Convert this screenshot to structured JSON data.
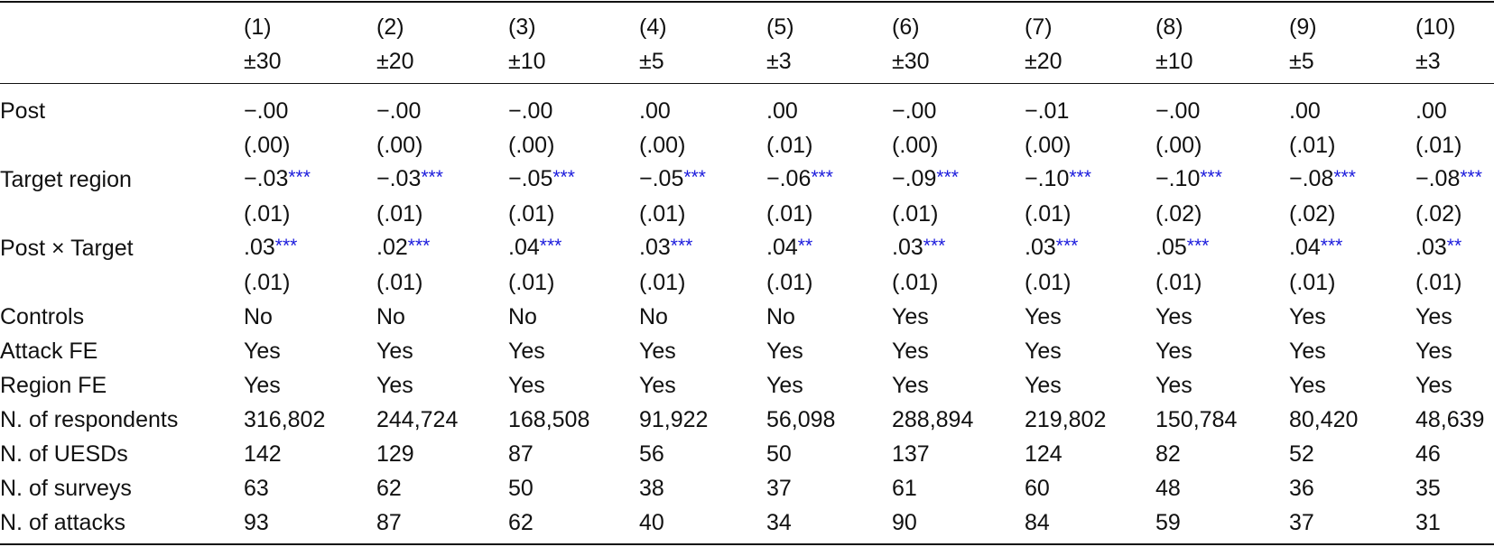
{
  "table": {
    "header": {
      "numbers": [
        "(1)",
        "(2)",
        "(3)",
        "(4)",
        "(5)",
        "(6)",
        "(7)",
        "(8)",
        "(9)",
        "(10)"
      ],
      "windows": [
        "±30",
        "±20",
        "±10",
        "±5",
        "±3",
        "±30",
        "±20",
        "±10",
        "±5",
        "±3"
      ]
    },
    "rows": [
      {
        "label": "Post",
        "cells": [
          "−.00",
          "−.00",
          "−.00",
          ".00",
          ".00",
          "−.00",
          "−.01",
          "−.00",
          ".00",
          ".00"
        ]
      },
      {
        "cells": [
          "(.00)",
          "(.00)",
          "(.00)",
          "(.00)",
          "(.01)",
          "(.00)",
          "(.00)",
          "(.00)",
          "(.01)",
          "(.01)"
        ]
      },
      {
        "label": "Target region",
        "cells": [
          {
            "text": "−.03",
            "stars": "***"
          },
          {
            "text": "−.03",
            "stars": "***"
          },
          {
            "text": "−.05",
            "stars": "***"
          },
          {
            "text": "−.05",
            "stars": "***"
          },
          {
            "text": "−.06",
            "stars": "***"
          },
          {
            "text": "−.09",
            "stars": "***"
          },
          {
            "text": "−.10",
            "stars": "***"
          },
          {
            "text": "−.10",
            "stars": "***"
          },
          {
            "text": "−.08",
            "stars": "***"
          },
          {
            "text": "−.08",
            "stars": "***"
          }
        ]
      },
      {
        "cells": [
          "(.01)",
          "(.01)",
          "(.01)",
          "(.01)",
          "(.01)",
          "(.01)",
          "(.01)",
          "(.02)",
          "(.02)",
          "(.02)"
        ]
      },
      {
        "label": "Post × Target",
        "cells": [
          {
            "text": ".03",
            "stars": "***"
          },
          {
            "text": ".02",
            "stars": "***"
          },
          {
            "text": ".04",
            "stars": "***"
          },
          {
            "text": ".03",
            "stars": "***"
          },
          {
            "text": ".04",
            "stars": "**"
          },
          {
            "text": ".03",
            "stars": "***"
          },
          {
            "text": ".03",
            "stars": "***"
          },
          {
            "text": ".05",
            "stars": "***"
          },
          {
            "text": ".04",
            "stars": "***"
          },
          {
            "text": ".03",
            "stars": "**"
          }
        ]
      },
      {
        "cells": [
          "(.01)",
          "(.01)",
          "(.01)",
          "(.01)",
          "(.01)",
          "(.01)",
          "(.01)",
          "(.01)",
          "(.01)",
          "(.01)"
        ]
      },
      {
        "label": "Controls",
        "cells": [
          "No",
          "No",
          "No",
          "No",
          "No",
          "Yes",
          "Yes",
          "Yes",
          "Yes",
          "Yes"
        ]
      },
      {
        "label": "Attack FE",
        "cells": [
          "Yes",
          "Yes",
          "Yes",
          "Yes",
          "Yes",
          "Yes",
          "Yes",
          "Yes",
          "Yes",
          "Yes"
        ]
      },
      {
        "label": "Region FE",
        "cells": [
          "Yes",
          "Yes",
          "Yes",
          "Yes",
          "Yes",
          "Yes",
          "Yes",
          "Yes",
          "Yes",
          "Yes"
        ]
      },
      {
        "label": "N. of respondents",
        "cells": [
          "316,802",
          "244,724",
          "168,508",
          "91,922",
          "56,098",
          "288,894",
          "219,802",
          "150,784",
          "80,420",
          "48,639"
        ]
      },
      {
        "label": "N. of UESDs",
        "cells": [
          "142",
          "129",
          "87",
          "56",
          "50",
          "137",
          "124",
          "82",
          "52",
          "46"
        ]
      },
      {
        "label": "N. of surveys",
        "cells": [
          "63",
          "62",
          "50",
          "38",
          "37",
          "61",
          "60",
          "48",
          "36",
          "35"
        ]
      },
      {
        "label": "N. of attacks",
        "cells": [
          "93",
          "87",
          "62",
          "40",
          "34",
          "90",
          "84",
          "59",
          "37",
          "31"
        ]
      }
    ]
  }
}
